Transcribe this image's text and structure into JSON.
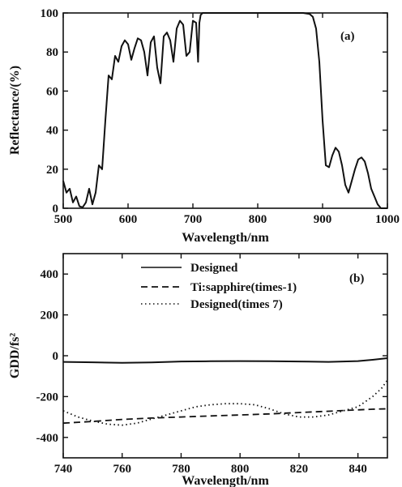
{
  "chart_data": [
    {
      "type": "line",
      "panel_label": "(a)",
      "xlabel": "Wavelength/nm",
      "ylabel": "Reflectance/(%)",
      "xlim": [
        500,
        1000
      ],
      "ylim": [
        0,
        100
      ],
      "xticks": [
        500,
        600,
        700,
        800,
        900,
        1000
      ],
      "yticks": [
        0,
        20,
        40,
        60,
        80,
        100
      ],
      "grid": false,
      "series": [
        {
          "name": "",
          "style": "solid",
          "x": [
            500,
            505,
            510,
            515,
            520,
            525,
            530,
            535,
            540,
            545,
            550,
            555,
            560,
            565,
            570,
            575,
            580,
            585,
            590,
            595,
            600,
            605,
            610,
            615,
            620,
            625,
            630,
            635,
            640,
            645,
            650,
            655,
            660,
            665,
            670,
            675,
            680,
            685,
            690,
            695,
            700,
            705,
            708,
            710,
            712,
            715,
            720,
            740,
            760,
            780,
            800,
            820,
            840,
            860,
            870,
            880,
            885,
            890,
            895,
            900,
            905,
            910,
            915,
            920,
            925,
            930,
            935,
            940,
            945,
            950,
            955,
            960,
            965,
            970,
            975,
            980,
            985,
            990,
            995,
            1000
          ],
          "y": [
            14,
            8,
            10,
            3,
            6,
            1,
            0.5,
            3,
            10,
            2,
            8,
            22,
            20,
            45,
            68,
            66,
            78,
            75,
            83,
            86,
            84,
            76,
            82,
            87,
            86,
            80,
            68,
            85,
            88,
            72,
            64,
            88,
            90,
            86,
            75,
            92,
            96,
            94,
            78,
            80,
            96,
            95,
            75,
            95,
            99,
            100,
            100,
            100,
            100,
            100,
            100,
            100,
            100,
            100,
            100,
            99.5,
            98,
            92,
            75,
            45,
            22,
            21,
            27,
            31,
            29,
            22,
            12,
            8,
            14,
            20,
            25,
            26,
            24,
            18,
            10,
            6,
            2,
            0,
            0,
            0
          ]
        }
      ]
    },
    {
      "type": "line",
      "panel_label": "(b)",
      "xlabel": "Wavelength/nm",
      "ylabel": "GDD/fs²",
      "xlim": [
        740,
        850
      ],
      "ylim": [
        -500,
        500
      ],
      "xticks": [
        740,
        760,
        780,
        800,
        820,
        840
      ],
      "yticks": [
        -400,
        -200,
        0,
        200,
        400
      ],
      "grid": false,
      "legend": "top-center",
      "series": [
        {
          "name": "Designed",
          "style": "solid",
          "x": [
            740,
            750,
            760,
            770,
            780,
            790,
            800,
            810,
            820,
            830,
            840,
            845,
            850
          ],
          "y": [
            -30,
            -32,
            -35,
            -33,
            -28,
            -27,
            -26,
            -27,
            -28,
            -30,
            -26,
            -20,
            -12
          ]
        },
        {
          "name": "Ti:sapphire(times-1)",
          "style": "dashed",
          "x": [
            740,
            750,
            760,
            770,
            780,
            790,
            800,
            810,
            820,
            830,
            840,
            845,
            850
          ],
          "y": [
            -330,
            -322,
            -312,
            -305,
            -300,
            -295,
            -290,
            -285,
            -278,
            -272,
            -265,
            -262,
            -260
          ]
        },
        {
          "name": "Designed(times 7)",
          "style": "dotted",
          "x": [
            740,
            745,
            750,
            755,
            760,
            765,
            770,
            775,
            780,
            785,
            790,
            795,
            800,
            805,
            810,
            815,
            820,
            825,
            830,
            835,
            840,
            845,
            848,
            850
          ],
          "y": [
            -270,
            -300,
            -320,
            -335,
            -340,
            -330,
            -310,
            -290,
            -270,
            -250,
            -240,
            -235,
            -235,
            -240,
            -260,
            -285,
            -300,
            -300,
            -290,
            -270,
            -250,
            -200,
            -160,
            -120
          ]
        }
      ]
    }
  ]
}
